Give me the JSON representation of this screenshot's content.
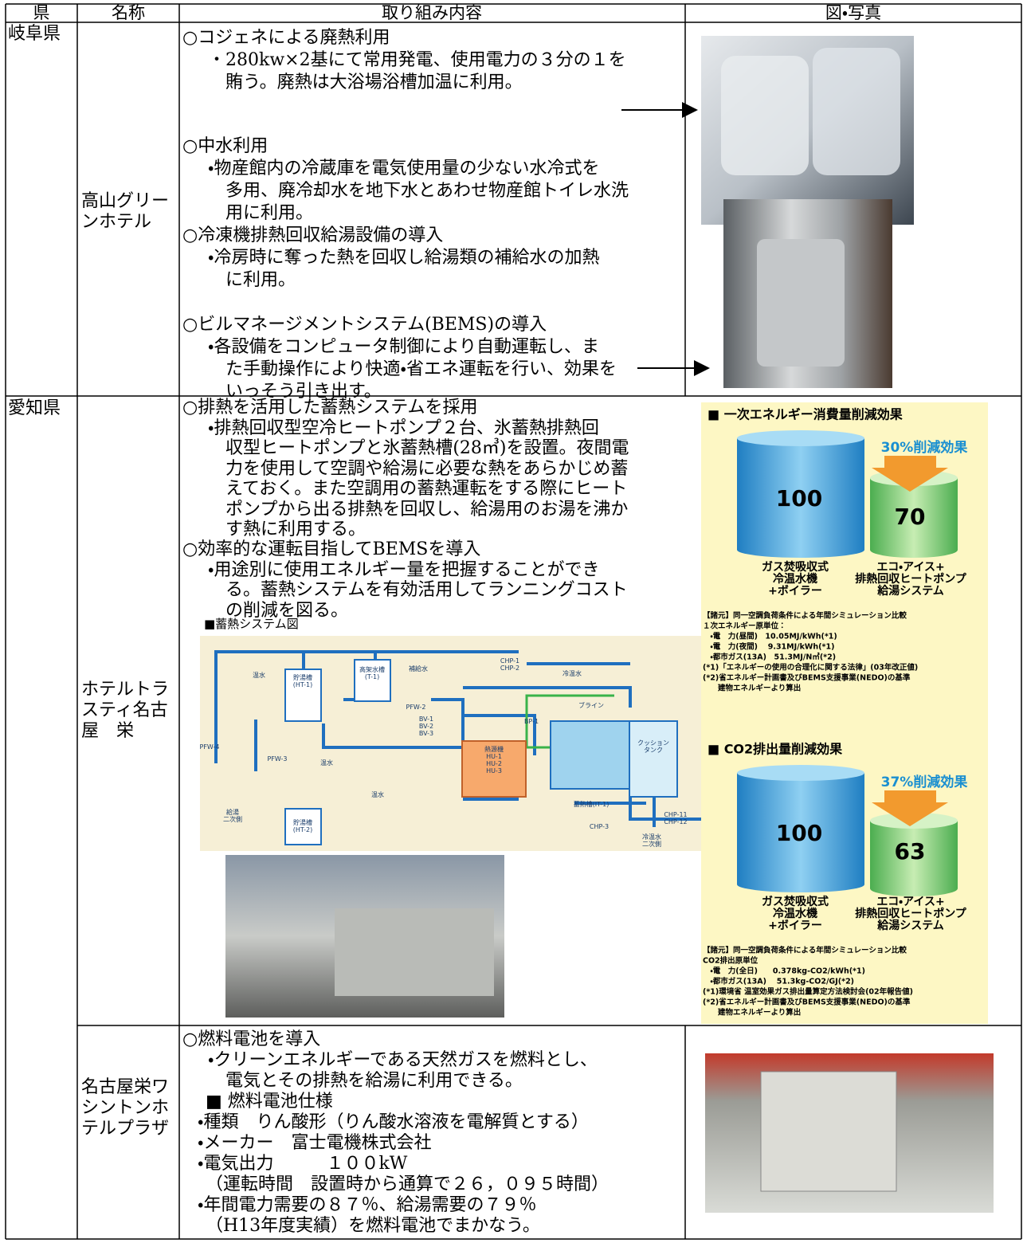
{
  "header": [
    "県",
    "名称",
    "取り組み内容",
    "図・写真"
  ],
  "rows": [
    {
      "prefecture": "岐阜県",
      "name": "高山グリーンホテル",
      "items": [
        {
          "heading": "○コジェネによる廃熱利用",
          "body": [
            "・280kw×2基にて常用発電、使用電力の３分の１を",
            "賄う。廃熱は大浴場浴槽加温に利用。"
          ]
        },
        {
          "heading": "○中水利用",
          "body": [
            "・物産館内の冷蔵庫を電気使用量の少ない水冷式を",
            "多用、廃冷却水を地下水とあわせ物産館トイレ水洗",
            "用に利用。"
          ]
        },
        {
          "heading": "○冷凍機排熱回収給湯設備の導入",
          "body": [
            "・冷房時に奪った熱を回収し給湯類の補給水の加熱",
            "に利用。"
          ]
        },
        {
          "heading": "○ビルマネージメントシステム(BEMS)の導入",
          "body": [
            "・各設備をコンピュータ制御により自動運転し、ま",
            "た手動操作により快適・省エネ運転を行い、効果を",
            "いっそう引き出す。"
          ]
        }
      ]
    },
    {
      "prefecture": "愛知県",
      "name": "ホテルトラスティ名古屋　栄",
      "items": [
        {
          "heading": "○排熱を活用した蓄熱システムを採用",
          "body": [
            "・排熱回収型空冷ヒートポンプ２台、氷蓄熱排熱回",
            "収型ヒートポンプと氷蓄熱槽(28㎥)を設置。夜間電",
            "力を使用して空調や給湯に必要な熱をあらかじめ蓄",
            "えておく。また空調用の蓄熱運転をする際にヒート",
            "ポンプから出る排熱を回収し、給湯用のお湯を沸か",
            "す熱に利用する。"
          ]
        },
        {
          "heading": "○効率的な運転目指してBEMSを導入",
          "body": [
            "・用途別に使用エネルギー量を把握することができ",
            "る。蓄熱システムを有効活用してランニングコスト",
            "の削減を図る。"
          ]
        }
      ],
      "diagram": {
        "title": "■蓄熱システム図",
        "labels": [
          [
            "温水"
          ],
          [
            "貯湯槽",
            "(HT-1)"
          ],
          [
            "高架水槽",
            "(T-1)"
          ],
          [
            "補給水"
          ],
          [
            "CHP-1",
            "CHP-2"
          ],
          [
            "冷温水"
          ],
          [
            "PFW-2"
          ],
          [
            "ブライン"
          ],
          [
            "BV-1",
            "BV-2",
            "BV-3"
          ],
          [
            "BP-1"
          ],
          [
            "PFW-4"
          ],
          [
            "PFW-3"
          ],
          [
            "温水"
          ],
          [
            "熱源機",
            "HU-1",
            "HU-2",
            "HU-3"
          ],
          [
            "クッション",
            "タンク"
          ],
          [
            "温水"
          ],
          [
            "蓄熱槽(IT-1)"
          ],
          [
            "給湯",
            "二次側"
          ],
          [
            "貯湯槽",
            "(HT-2)"
          ],
          [
            "CHP-3"
          ],
          [
            "CHP-11",
            "CHP-12"
          ],
          [
            "冷温水",
            "二次側"
          ]
        ]
      },
      "infographic": [
        {
          "title": "■ 一次エネルギー消費量削減効果",
          "reduction": "30%削減効果",
          "before": {
            "value": 100,
            "label": [
              "ガス焚吸収式",
              "冷温水機",
              "+ボイラー"
            ]
          },
          "after": {
            "value": 70,
            "label": [
              "エコ・アイス+",
              "排熱回収ヒートポンプ",
              "給湯システム"
            ]
          },
          "notes": [
            "【諸元】同一空調負荷条件による年間シミュレーション比較",
            "１次エネルギー原単位：",
            "　・電　力(昼間)　10.05MJ/kWh(*1)",
            "　・電　力(夜間)　 9.31MJ/kWh(*1)",
            "　・都市ガス(13A)　51.3MJ/N㎥(*2)",
            "(*1)「エネルギーの使用の合理化に関する法律」(03年改正値)",
            "(*2)省エネルギー計画書及びBEMS支援事業(NEDO)の基準",
            "　　建物エネルギーより算出"
          ]
        },
        {
          "title": "■ CO2排出量削減効果",
          "reduction": "37%削減効果",
          "before": {
            "value": 100,
            "label": [
              "ガス焚吸収式",
              "冷温水機",
              "+ボイラー"
            ]
          },
          "after": {
            "value": 63,
            "label": [
              "エコ・アイス+",
              "排熱回収ヒートポンプ",
              "給湯システム"
            ]
          },
          "notes": [
            "【諸元】同一空調負荷条件による年間シミュレーション比較",
            "CO2排出原単位",
            "　・電　力(全日)　　0.378kg-CO2/kWh(*1)",
            "　・都市ガス(13A)　 51.3kg-CO2/GJ(*2)",
            "(*1)環境省 温室効果ガス排出量算定方法検討会(02年報告値)",
            "(*2)省エネルギー計画書及びBEMS支援事業(NEDO)の基準",
            "　　建物エネルギーより算出"
          ]
        }
      ]
    },
    {
      "name": "名古屋栄ワシントンホテルプラザ",
      "heading": "○燃料電池を導入",
      "body": [
        "・クリーンエネルギーである天然ガスを燃料とし、",
        "電気とその排熱を給湯に利用できる。"
      ],
      "spec_title": "■ 燃料電池仕様",
      "spec": [
        "・種類　りん酸形（りん酸水溶液を電解質とする）",
        "・メーカー　富士電機株式会社",
        "・電気出力　　　１００kW",
        "（運転時間　設置時から通算で２６，０９５時間）",
        "・年間電力需要の８７％、給湯需要の７９％",
        "（H13年度実績）を燃料電池でまかなう。"
      ]
    }
  ]
}
